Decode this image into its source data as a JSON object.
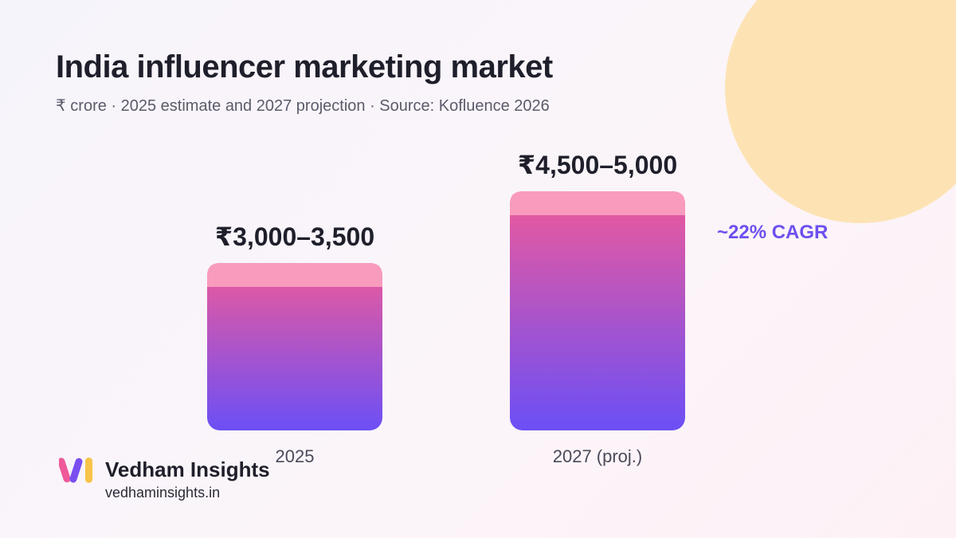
{
  "header": {
    "title": "India influencer marketing market",
    "subtitle": "₹ crore · 2025 estimate and 2027 projection · Source: Kofluence 2026"
  },
  "chart_data": {
    "type": "bar",
    "title": "India influencer marketing market",
    "subtitle": "₹ crore · 2025 estimate and 2027 projection · Source: Kofluence 2026",
    "categories": [
      "2025",
      "2027 (proj.)"
    ],
    "series": [
      {
        "low": [
          3000,
          4500
        ],
        "high": [
          3500,
          5000
        ],
        "labels": [
          "₹3,000–3,500",
          "₹4,500–5,000"
        ]
      }
    ],
    "ylim": [
      0,
      5000
    ],
    "grid": false,
    "annotation": "~22% CAGR",
    "colors": {
      "bar_top": "#ee5a9a",
      "bar_bottom": "#6c4ff6",
      "range_band": "#f89bbd"
    }
  },
  "brand": {
    "name": "Vedham Insights",
    "url": "vedhaminsights.in",
    "logo_icon": "vi-logo-icon"
  }
}
